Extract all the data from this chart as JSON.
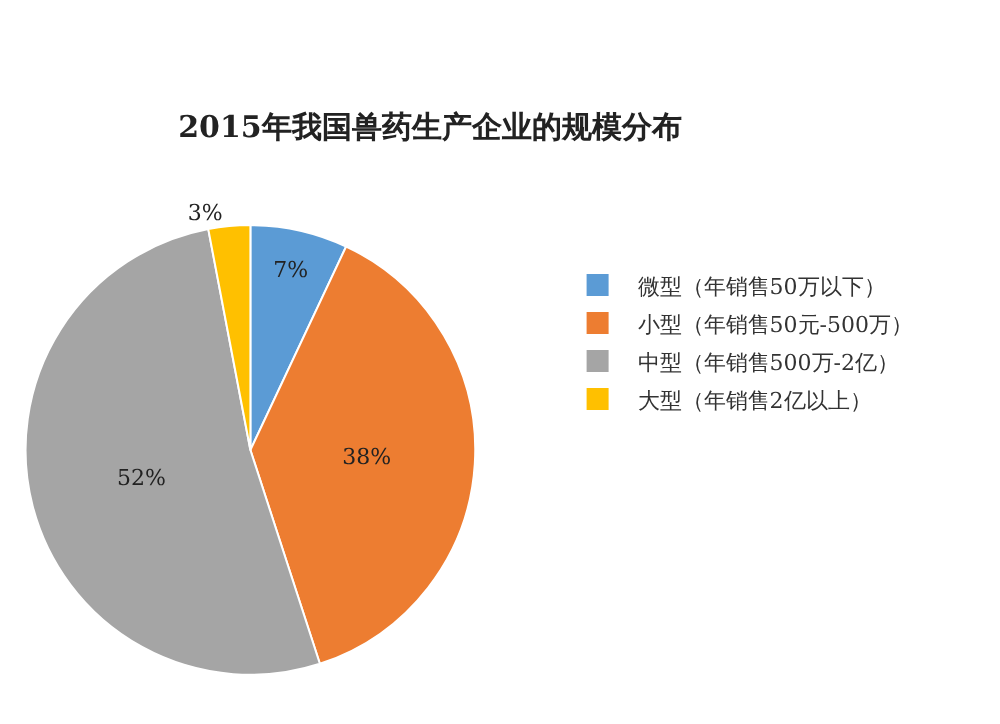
{
  "chart_data": {
    "type": "pie",
    "title": "2015年我国兽药生产企业的规模分布",
    "categories": [
      "微型（年销售50万以下）",
      "小型（年销售50元-500万）",
      "中型（年销售500万-2亿）",
      "大型（年销售2亿以上）"
    ],
    "values": [
      7,
      38,
      52,
      3
    ],
    "colors": [
      "#5b9bd5",
      "#ed7d31",
      "#a5a5a5",
      "#ffc000"
    ],
    "value_labels": [
      "7%",
      "38%",
      "52%",
      "3%"
    ],
    "legend": "right"
  }
}
